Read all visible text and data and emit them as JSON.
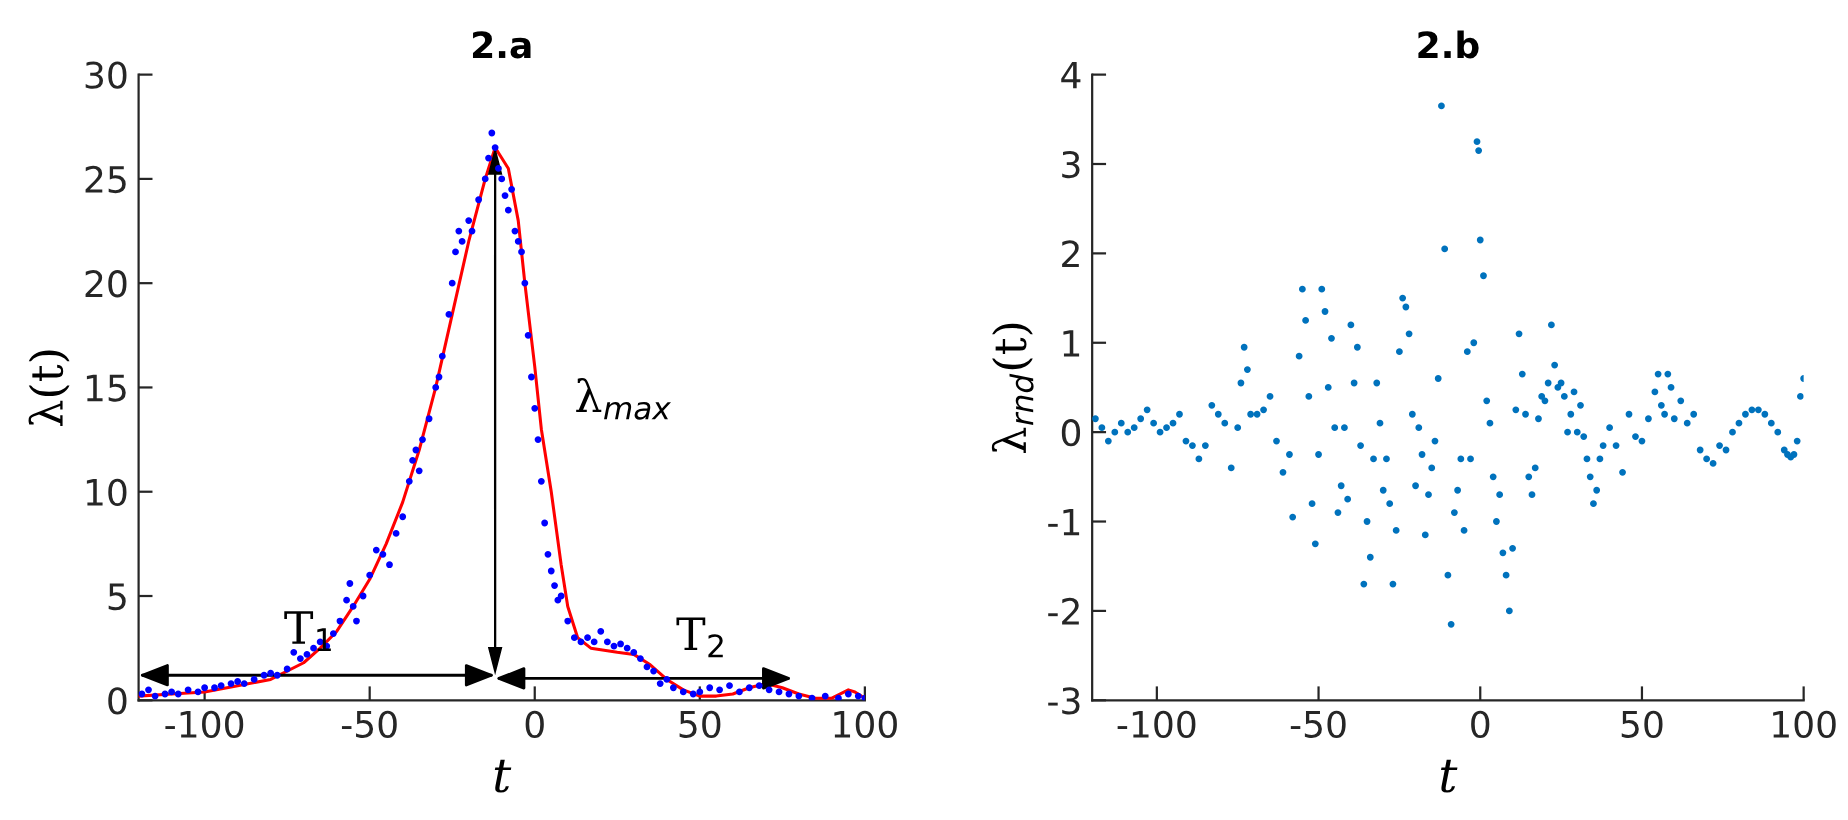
{
  "chart_data": [
    {
      "type": "scatter",
      "title": "2.a",
      "xlabel": "t",
      "ylabel": "λ(t)",
      "xlim": [
        -120,
        100
      ],
      "ylim": [
        0,
        30
      ],
      "xticks": [
        -100,
        -50,
        0,
        50,
        100
      ],
      "yticks": [
        0,
        5,
        10,
        15,
        20,
        25,
        30
      ],
      "grid": false,
      "legend": false,
      "series": [
        {
          "type": "scatter",
          "color": "#0000ff",
          "marker": "circle",
          "x": [
            -119,
            -117,
            -115,
            -112,
            -110,
            -108,
            -105,
            -102,
            -100,
            -97,
            -95,
            -92,
            -90,
            -88,
            -85,
            -82,
            -80,
            -78,
            -75,
            -73,
            -71,
            -69,
            -67,
            -65,
            -63,
            -61,
            -59,
            -57,
            -56,
            -55,
            -54,
            -52,
            -50,
            -48,
            -46,
            -44,
            -42,
            -40,
            -38,
            -37,
            -36,
            -35,
            -34,
            -32,
            -30,
            -29,
            -28,
            -26,
            -25,
            -24,
            -23,
            -22,
            -20,
            -19,
            -17,
            -15,
            -14,
            -13,
            -12,
            -11,
            -10,
            -9,
            -8,
            -7,
            -6,
            -5,
            -4,
            -3,
            -2,
            -1,
            0,
            1,
            2,
            3,
            4,
            5,
            6,
            7,
            8,
            10,
            12,
            14,
            16,
            18,
            20,
            22,
            24,
            26,
            28,
            30,
            32,
            34,
            36,
            38,
            40,
            42,
            45,
            48,
            50,
            53,
            56,
            59,
            62,
            65,
            68,
            71,
            74,
            77,
            80,
            84,
            88,
            92,
            95,
            98,
            100
          ],
          "values": [
            0.3,
            0.5,
            0.2,
            0.3,
            0.4,
            0.3,
            0.5,
            0.4,
            0.6,
            0.6,
            0.7,
            0.8,
            0.9,
            0.8,
            1.0,
            1.2,
            1.3,
            1.2,
            1.5,
            2.3,
            2.0,
            2.2,
            2.5,
            2.8,
            2.6,
            3.2,
            3.8,
            4.8,
            5.6,
            4.5,
            3.8,
            5.0,
            6.0,
            7.2,
            7.0,
            6.5,
            8.0,
            8.8,
            10.5,
            11.5,
            12.0,
            11.0,
            12.5,
            13.5,
            15.0,
            15.5,
            16.5,
            18.5,
            20.0,
            21.5,
            22.5,
            22.0,
            23.0,
            22.5,
            24.0,
            25.0,
            26.0,
            27.2,
            26.5,
            25.5,
            25.0,
            24.2,
            23.5,
            24.5,
            22.5,
            22.0,
            21.5,
            20.0,
            17.5,
            15.5,
            14.0,
            12.5,
            10.5,
            8.5,
            7.0,
            6.2,
            5.5,
            4.8,
            5.0,
            3.8,
            3.0,
            2.8,
            3.0,
            2.8,
            3.3,
            2.8,
            2.6,
            2.7,
            2.5,
            2.3,
            2.0,
            1.6,
            1.4,
            0.8,
            1.0,
            0.6,
            0.4,
            0.3,
            0.4,
            0.6,
            0.5,
            0.7,
            0.4,
            0.6,
            0.7,
            0.5,
            0.4,
            0.3,
            0.2,
            0.1,
            0.2,
            0.1,
            0.3,
            0.2,
            0.1
          ]
        },
        {
          "type": "line",
          "color": "#ff0000",
          "marker": "none",
          "x": [
            -120,
            -110,
            -100,
            -90,
            -80,
            -70,
            -65,
            -60,
            -55,
            -50,
            -45,
            -40,
            -35,
            -30,
            -25,
            -20,
            -15,
            -12,
            -10,
            -8,
            -5,
            -3,
            0,
            2,
            5,
            8,
            10,
            13,
            17,
            25,
            30,
            35,
            40,
            45,
            50,
            55,
            60,
            65,
            70,
            75,
            80,
            85,
            90,
            95,
            97,
            100
          ],
          "values": [
            0.2,
            0.3,
            0.4,
            0.7,
            1.0,
            1.8,
            2.5,
            3.3,
            4.5,
            5.8,
            7.5,
            9.5,
            12,
            15,
            18.5,
            22,
            25,
            26.5,
            26,
            25.5,
            23,
            20,
            16,
            13,
            10,
            6.5,
            4.5,
            3,
            2.5,
            2.3,
            2.2,
            1.7,
            1.0,
            0.5,
            0.2,
            0.2,
            0.3,
            0.6,
            0.8,
            0.6,
            0.3,
            0.1,
            0.1,
            0.5,
            0.4,
            0.1
          ]
        }
      ],
      "annotations": [
        "λ$_{max}$",
        "T$_{1}$",
        "T$_{2}$"
      ]
    },
    {
      "type": "scatter",
      "title": "2.b",
      "xlabel": "t",
      "ylabel": "λ$_{rnd}$(t)",
      "xlim": [
        -120,
        100
      ],
      "ylim": [
        -3,
        4
      ],
      "xticks": [
        -100,
        -50,
        0,
        50,
        100
      ],
      "yticks": [
        -3,
        -2,
        -1,
        0,
        1,
        2,
        3,
        4
      ],
      "grid": false,
      "legend": false,
      "series": [
        {
          "type": "scatter",
          "color": "#0072bd",
          "marker": "circle",
          "x": [
            -119,
            -117,
            -115,
            -113,
            -111,
            -109,
            -107,
            -105,
            -103,
            -101,
            -99,
            -97,
            -95,
            -93,
            -91,
            -89,
            -87,
            -85,
            -83,
            -81,
            -79,
            -77,
            -75,
            -74,
            -73,
            -72,
            -71,
            -69,
            -67,
            -65,
            -63,
            -61,
            -59,
            -58,
            -56,
            -55,
            -54,
            -53,
            -52,
            -51,
            -50,
            -49,
            -48,
            -47,
            -46,
            -45,
            -44,
            -43,
            -42,
            -41,
            -40,
            -39,
            -38,
            -37,
            -36,
            -35,
            -34,
            -33,
            -32,
            -31,
            -30,
            -29,
            -28,
            -27,
            -26,
            -25,
            -24,
            -23,
            -22,
            -21,
            -20,
            -19,
            -18,
            -17,
            -16,
            -15,
            -14,
            -13,
            -12,
            -11,
            -10,
            -9,
            -8,
            -7,
            -6,
            -5,
            -4,
            -3,
            -2,
            -1,
            -0.5,
            0,
            1,
            2,
            3,
            4,
            5,
            6,
            7,
            8,
            9,
            10,
            11,
            12,
            13,
            14,
            15,
            16,
            17,
            18,
            19,
            20,
            21,
            22,
            23,
            24,
            25,
            26,
            27,
            28,
            29,
            30,
            31,
            32,
            33,
            34,
            35,
            36,
            37,
            38,
            40,
            42,
            44,
            46,
            48,
            50,
            52,
            54,
            55,
            56,
            57,
            58,
            59,
            60,
            62,
            64,
            66,
            68,
            70,
            72,
            74,
            76,
            78,
            80,
            82,
            84,
            86,
            88,
            90,
            92,
            94,
            95,
            96,
            97,
            98,
            99,
            100
          ],
          "values": [
            0.15,
            0.05,
            -0.1,
            0.0,
            0.1,
            0.0,
            0.05,
            0.15,
            0.25,
            0.1,
            0.0,
            0.05,
            0.1,
            0.2,
            -0.1,
            -0.15,
            -0.3,
            -0.15,
            0.3,
            0.2,
            0.1,
            -0.4,
            0.05,
            0.55,
            0.95,
            0.7,
            0.2,
            0.2,
            0.25,
            0.4,
            -0.1,
            -0.45,
            -0.25,
            -0.95,
            0.85,
            1.6,
            1.25,
            0.4,
            -0.8,
            -1.25,
            -0.25,
            1.6,
            1.35,
            0.5,
            1.05,
            0.05,
            -0.9,
            -0.6,
            0.05,
            -0.75,
            1.2,
            0.55,
            0.95,
            -0.15,
            -1.7,
            -1.0,
            -1.4,
            -0.3,
            0.55,
            0.1,
            -0.65,
            -0.3,
            -0.8,
            -1.7,
            -1.1,
            0.9,
            1.5,
            1.4,
            1.1,
            0.2,
            -0.6,
            0.05,
            -0.25,
            -1.15,
            -0.7,
            -0.4,
            -0.1,
            0.6,
            3.65,
            2.05,
            -1.6,
            -2.15,
            -0.9,
            -0.65,
            -0.3,
            -1.1,
            0.9,
            -0.3,
            1.0,
            3.25,
            3.15,
            2.15,
            1.75,
            0.35,
            0.1,
            -0.5,
            -1.0,
            -0.7,
            -1.35,
            -1.6,
            -2.0,
            -1.3,
            0.25,
            1.1,
            0.65,
            0.2,
            -0.5,
            -0.7,
            -0.4,
            0.15,
            0.4,
            0.35,
            0.55,
            1.2,
            0.75,
            0.5,
            0.55,
            0.4,
            0.0,
            0.2,
            0.45,
            0.0,
            0.3,
            -0.05,
            -0.3,
            -0.5,
            -0.8,
            -0.65,
            -0.3,
            -0.15,
            0.05,
            -0.15,
            -0.45,
            0.2,
            -0.05,
            -0.1,
            0.15,
            0.45,
            0.65,
            0.3,
            0.2,
            0.65,
            0.5,
            0.15,
            0.35,
            0.1,
            0.2,
            -0.2,
            -0.3,
            -0.35,
            -0.15,
            -0.2,
            0.0,
            0.1,
            0.2,
            0.25,
            0.25,
            0.2,
            0.1,
            0.0,
            -0.2,
            -0.25,
            -0.28,
            -0.25,
            -0.1,
            0.4,
            0.6
          ]
        }
      ]
    }
  ]
}
